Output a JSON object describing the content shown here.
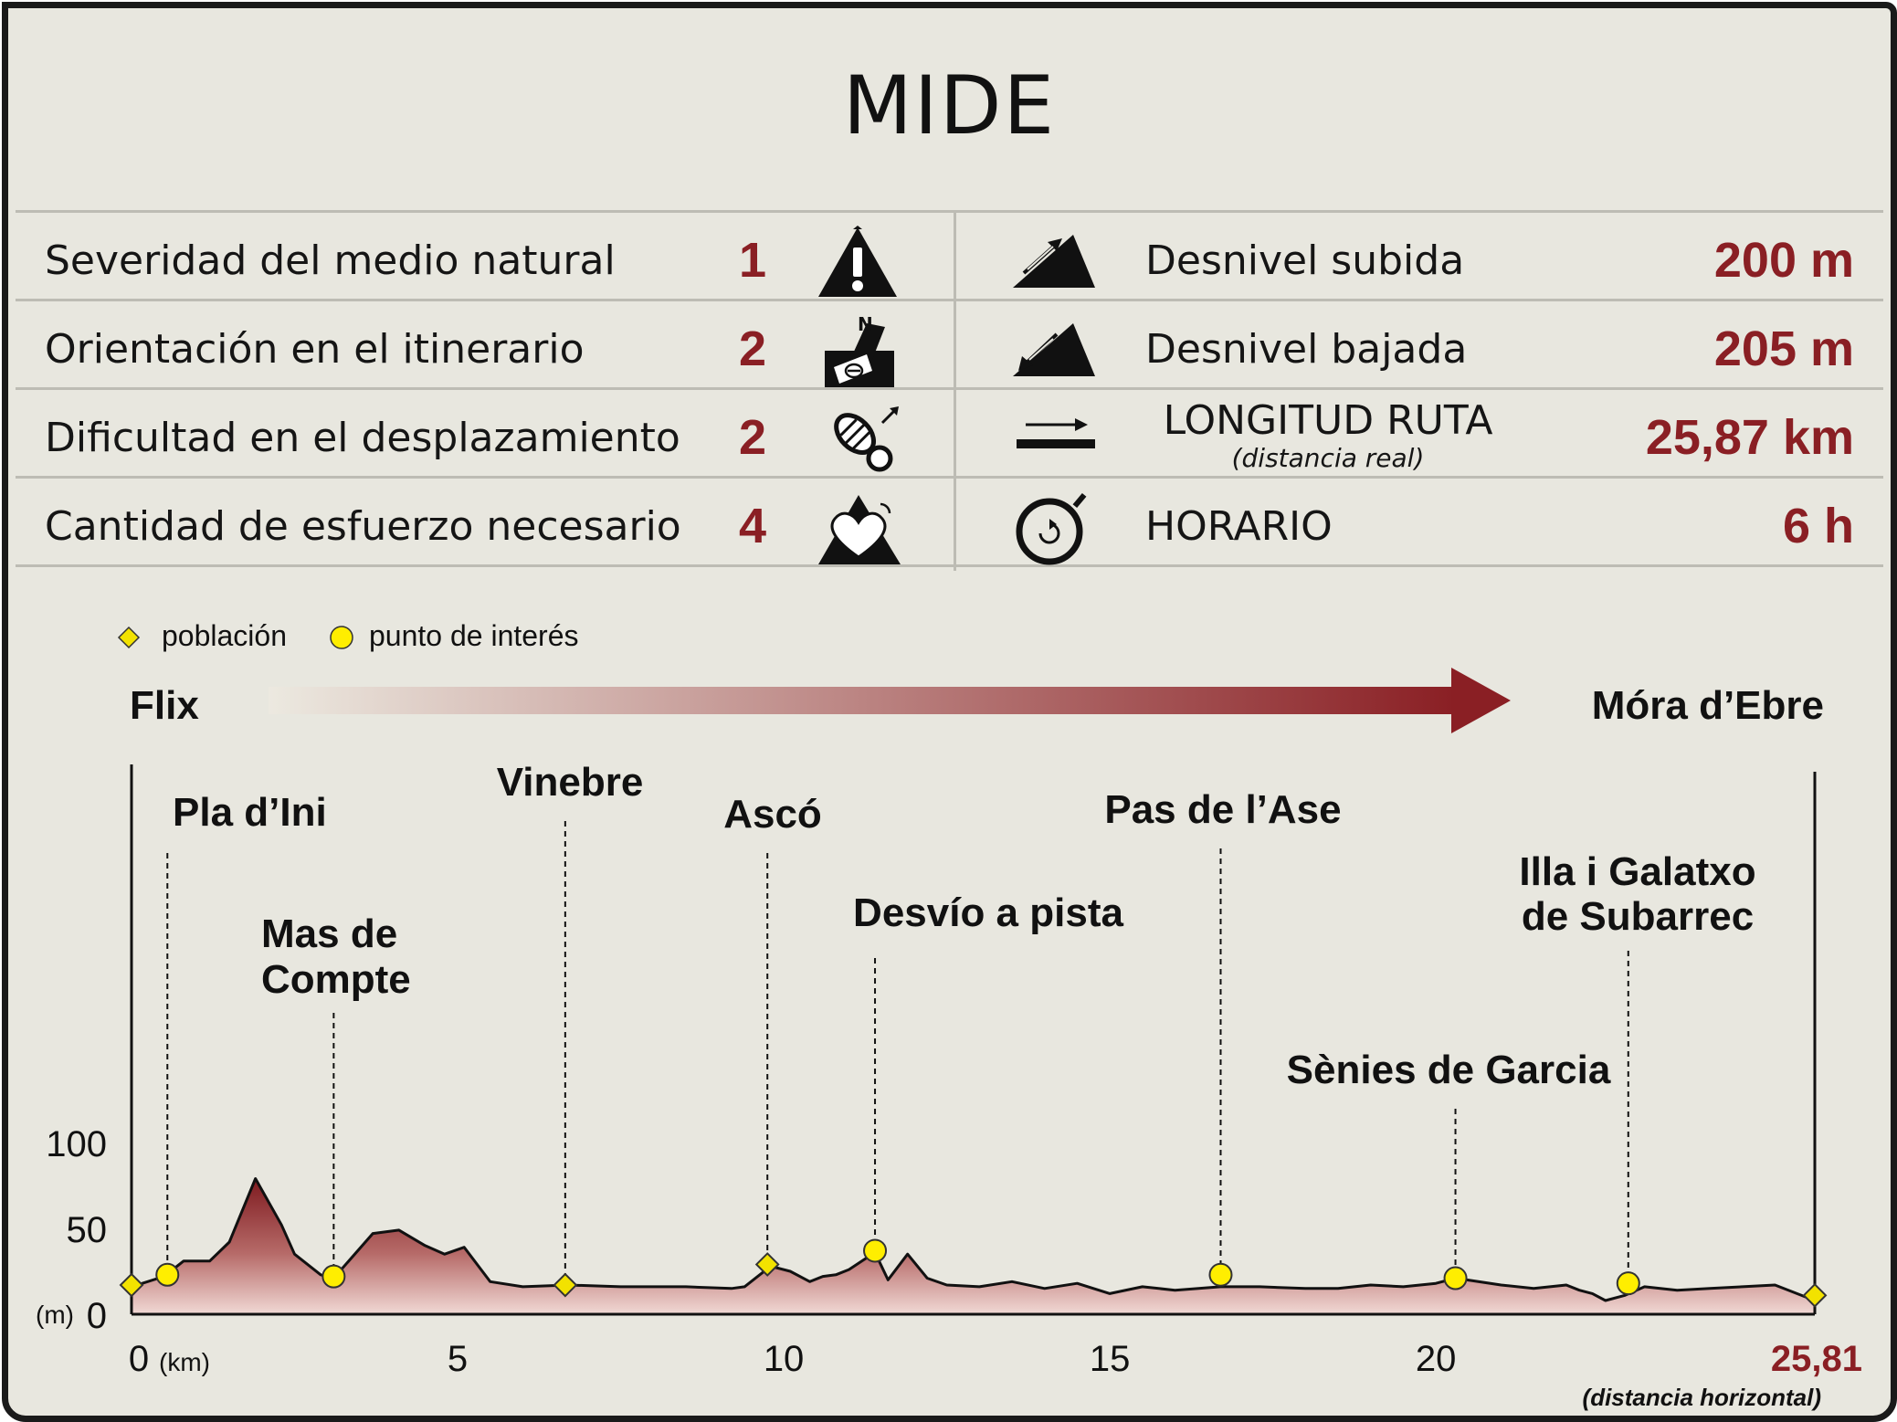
{
  "header": {
    "title": "MIDE"
  },
  "mide": {
    "left": [
      {
        "label": "Severidad del medio natural",
        "value": "1",
        "icon": "warning-mountain-icon"
      },
      {
        "label": "Orientación en el itinerario",
        "value": "2",
        "icon": "compass-orientation-icon"
      },
      {
        "label": "Dificultad en el desplazamiento",
        "value": "2",
        "icon": "footprint-icon"
      },
      {
        "label": "Cantidad de esfuerzo necesario",
        "value": "4",
        "icon": "heart-mountain-icon"
      }
    ],
    "right": [
      {
        "label": "Desnivel subida",
        "value": "200 m",
        "icon": "ascent-icon"
      },
      {
        "label": "Desnivel bajada",
        "value": "205 m",
        "icon": "descent-icon"
      },
      {
        "label": "LONGITUD RUTA",
        "sublabel": "(distancia real)",
        "value": "25,87 km",
        "icon": "length-arrow-icon"
      },
      {
        "label": "HORARIO",
        "value": "6 h",
        "icon": "stopwatch-icon"
      }
    ]
  },
  "legend": {
    "poblacion": "población",
    "punto": "punto de interés"
  },
  "route": {
    "start": "Flix",
    "end": "Móra d’Ebre"
  },
  "colors": {
    "accent": "#8a1f24",
    "marker_poblacion": "#f2e200",
    "marker_punto": "#ffee00",
    "profile_top": "#8a1f24"
  },
  "chart_data": {
    "type": "area",
    "xlabel": "(km)",
    "ylabel": "(m)",
    "xlim": [
      0,
      25.81
    ],
    "ylim": [
      0,
      100
    ],
    "x_ticks": [
      {
        "value": 0,
        "label": "0"
      },
      {
        "value": 5,
        "label": "5"
      },
      {
        "value": 10,
        "label": "10"
      },
      {
        "value": 15,
        "label": "15"
      },
      {
        "value": 20,
        "label": "20"
      },
      {
        "value": 25.81,
        "label": "25,81"
      }
    ],
    "y_ticks": [
      {
        "value": 0,
        "label": "0"
      },
      {
        "value": 50,
        "label": "50"
      },
      {
        "value": 100,
        "label": "100"
      }
    ],
    "end_distance_note": "(distancia horizontal)",
    "profile": {
      "x": [
        0,
        0.5,
        0.8,
        1.2,
        1.5,
        1.9,
        2.3,
        2.5,
        2.9,
        3.1,
        3.7,
        4.1,
        4.5,
        4.8,
        5.1,
        5.5,
        6,
        6.7,
        7.5,
        8.5,
        9.2,
        9.4,
        9.8,
        10.1,
        10.4,
        10.6,
        10.8,
        11.0,
        11.4,
        11.6,
        11.9,
        12.2,
        12.5,
        13,
        13.5,
        14,
        14.5,
        15,
        15.5,
        16,
        16.7,
        17.3,
        18,
        18.5,
        19,
        19.5,
        20,
        20.3,
        21,
        21.5,
        22,
        22.2,
        22.4,
        22.6,
        22.9,
        23.2,
        23.7,
        24.2,
        24.7,
        25.2,
        25.81
      ],
      "y": [
        16,
        22,
        31,
        31,
        42,
        79,
        52,
        35,
        23,
        21,
        47,
        49,
        40,
        35,
        39,
        19,
        16,
        17,
        16,
        16,
        15,
        16,
        28,
        25,
        19,
        22,
        23,
        26,
        36,
        20,
        35,
        21,
        17,
        16,
        19,
        15,
        18,
        12,
        16,
        14,
        16,
        16,
        15,
        15,
        17,
        16,
        18,
        21,
        17,
        15,
        17,
        14,
        12,
        8,
        11,
        16,
        14,
        15,
        16,
        17,
        8
      ]
    },
    "markers": [
      {
        "x": 0,
        "y": 17,
        "type": "poblacion",
        "label": "",
        "label_line": false
      },
      {
        "x": 0.55,
        "y": 23,
        "type": "punto",
        "label": "Pla d’Ini"
      },
      {
        "x": 3.1,
        "y": 22,
        "type": "punto",
        "label": "Mas de Compte"
      },
      {
        "x": 6.65,
        "y": 17,
        "type": "poblacion",
        "label": "Vinebre"
      },
      {
        "x": 9.75,
        "y": 29,
        "type": "poblacion",
        "label": "Ascó"
      },
      {
        "x": 11.4,
        "y": 37,
        "type": "punto",
        "label": "Desvío a pista"
      },
      {
        "x": 16.7,
        "y": 23,
        "type": "punto",
        "label": "Pas de l’Ase"
      },
      {
        "x": 20.3,
        "y": 21,
        "type": "punto",
        "label": "Sènies de Garcia"
      },
      {
        "x": 22.95,
        "y": 18,
        "type": "punto",
        "label": "Illa i Galatxo de Subarrec"
      },
      {
        "x": 25.81,
        "y": 11,
        "type": "poblacion",
        "label": "",
        "label_line": false
      }
    ]
  }
}
